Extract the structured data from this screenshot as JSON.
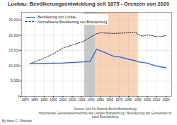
{
  "chart_data": {
    "type": "line",
    "title": "Luckau: Bevölkerungsentwicklung seit 1875 - Grenzen von 2020",
    "x": [
      1875,
      1890,
      1900,
      1910,
      1925,
      1933,
      1939,
      1946,
      1950,
      1964,
      1971,
      1981,
      1985,
      1989,
      1990,
      1995,
      2000,
      2005,
      2010,
      2015,
      2020
    ],
    "series": [
      {
        "name": "Bevölkerung von Luckau",
        "color": "#2f6cc7",
        "line_style": "solid",
        "values": [
          10659,
          10802,
          10850,
          10935,
          11186,
          11309,
          11448,
          15478,
          14937,
          13148,
          12872,
          12085,
          11846,
          11551,
          11325,
          11132,
          10882,
          10360,
          9918,
          9588,
          9420
        ]
      },
      {
        "name": "Normalisierte Bevölkerung von Brandenburg",
        "color": "#000000",
        "line_style": "dotted",
        "values": [
          10659,
          12500,
          14000,
          15800,
          17300,
          18200,
          19300,
          20500,
          20800,
          20600,
          20700,
          20800,
          20900,
          20700,
          20300,
          19700,
          20100,
          19900,
          19500,
          19600,
          19900
        ]
      }
    ],
    "shaded_periods": [
      {
        "from": 1933,
        "to": 1945,
        "color": "#c8c8c8"
      },
      {
        "from": 1945,
        "to": 1990,
        "color": "#f9d3b8"
      }
    ],
    "xlim": [
      1866,
      2026
    ],
    "xticks": [
      1870,
      1880,
      1890,
      1900,
      1910,
      1920,
      1930,
      1940,
      1950,
      1960,
      1970,
      1980,
      1990,
      2000,
      2010,
      2020
    ],
    "ylim": [
      0,
      27500
    ],
    "yticks": [
      0,
      {
        "value": 5000,
        "label": "5,000"
      },
      {
        "value": 10000,
        "label": "10,000"
      },
      {
        "value": 15000,
        "label": "15,000"
      },
      {
        "value": 20000,
        "label": "20,000"
      },
      {
        "value": 25000,
        "label": "25,000"
      }
    ],
    "grid": true,
    "legend": "top-left",
    "author": "By Hans G. Oberlack",
    "source": [
      "Source: Amt für Statistik Berlin-Brandenburg",
      "Historisches Gemeindeverzeichnis des Landes Brandenburg / Bevölkerung der Gemeinden im Land Brandenburg"
    ]
  }
}
